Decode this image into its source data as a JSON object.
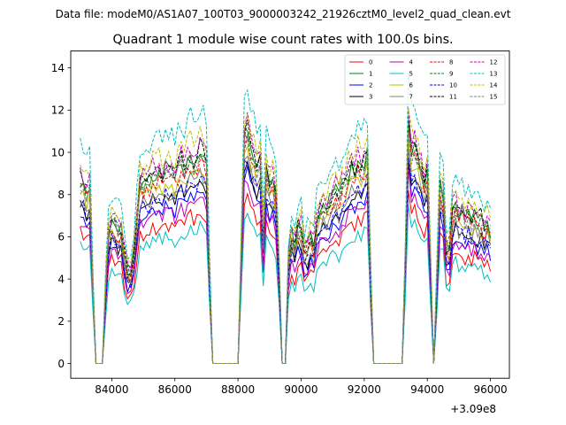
{
  "figure": {
    "suptitle": "Data file: modeM0/AS1A07_100T03_9000003242_21926cztM0_level2_quad_clean.evt",
    "offset_label": "+3.09e8"
  },
  "chart_data": {
    "type": "line",
    "title": "Quadrant 1 module wise count rates with 100.0s bins.",
    "xlabel": "",
    "ylabel": "",
    "xlim": [
      82700,
      96600
    ],
    "ylim": [
      -0.7,
      14.8
    ],
    "x_offset": 309000000,
    "xticks": [
      84000,
      86000,
      88000,
      90000,
      92000,
      94000,
      96000
    ],
    "xtick_labels": [
      "84000",
      "86000",
      "88000",
      "90000",
      "92000",
      "94000",
      "96000"
    ],
    "yticks": [
      0,
      2,
      4,
      6,
      8,
      10,
      12,
      14
    ],
    "ytick_labels": [
      "0",
      "2",
      "4",
      "6",
      "8",
      "10",
      "12",
      "14"
    ],
    "grid": false,
    "legend_position": "top-right",
    "legend_columns": 4,
    "x_start": 83000,
    "x_step": 100,
    "base_profile": [
      5.8,
      5.7,
      5.4,
      5.6,
      5.3,
      5.5,
      5.5,
      5.4,
      5.6,
      5.2,
      5.7,
      5.5,
      5.3,
      5.4,
      5.5,
      5.6,
      5.5,
      5.4,
      5.6,
      5.7,
      5.7,
      5.8,
      5.7,
      6.0,
      5.9,
      6.1,
      5.9,
      6.2,
      6.0,
      6.1,
      5.9,
      6.2,
      6.4,
      6.1,
      6.4,
      6.6,
      6.3,
      6.5,
      6.8,
      6.6,
      6.3,
      6.7,
      6.5,
      6.8,
      6.7,
      6.5,
      6.3,
      6.7,
      6.5,
      6.6,
      6.2,
      6.4,
      6.0,
      6.2,
      6.5,
      6.3,
      6.0,
      6.2,
      5.9,
      6.1,
      5.7,
      5.8,
      5.3,
      5.4,
      5.6,
      5.2,
      5.4,
      5.1,
      5.3,
      5.0,
      4.9,
      5.2,
      5.5,
      5.4,
      5.1,
      5.3,
      5.6,
      5.0,
      4.8,
      5.1,
      5.3,
      5.5,
      5.2,
      5.6,
      5.8,
      6.0,
      6.2,
      6.1,
      6.4,
      6.2,
      6.4,
      6.6,
      6.3,
      6.2,
      6.5,
      6.3,
      6.2,
      6.4,
      6.1,
      6.3,
      5.9,
      6.1,
      5.8,
      6.0,
      5.7,
      5.5,
      5.6,
      5.3,
      5.5,
      5.2,
      5.4,
      5.1,
      5.3,
      5.0,
      5.2,
      4.9,
      5.1,
      5.0,
      4.8,
      5.0,
      4.7,
      4.9,
      4.6,
      4.8,
      4.5,
      4.7,
      4.5,
      4.6,
      4.3,
      4.5,
      4.2
    ],
    "segments": [
      {
        "start": 0,
        "end": 4,
        "level": 1.0
      },
      {
        "start": 4,
        "end": 5,
        "level": 0.5
      },
      {
        "start": 5,
        "end": 8,
        "level": 0
      },
      {
        "start": 8,
        "end": 9,
        "level": 0.4
      },
      {
        "start": 9,
        "end": 14,
        "level": 0.8
      },
      {
        "start": 14,
        "end": 15,
        "level": 0.62
      },
      {
        "start": 15,
        "end": 17,
        "level": 0.54
      },
      {
        "start": 17,
        "end": 18,
        "level": 0.64
      },
      {
        "start": 18,
        "end": 19,
        "level": 0.82
      },
      {
        "start": 19,
        "end": 41,
        "level": 1.0
      },
      {
        "start": 41,
        "end": 42,
        "level": 0.4
      },
      {
        "start": 42,
        "end": 51,
        "level": 0
      },
      {
        "start": 51,
        "end": 52,
        "level": 0.55
      },
      {
        "start": 52,
        "end": 54,
        "level": 1.2
      },
      {
        "start": 54,
        "end": 58,
        "level": 1.05
      },
      {
        "start": 58,
        "end": 59,
        "level": 0.65
      },
      {
        "start": 59,
        "end": 63,
        "level": 1.0
      },
      {
        "start": 63,
        "end": 64,
        "level": 0.55
      },
      {
        "start": 64,
        "end": 66,
        "level": 0
      },
      {
        "start": 66,
        "end": 67,
        "level": 0.62
      },
      {
        "start": 67,
        "end": 68,
        "level": 0.8
      },
      {
        "start": 68,
        "end": 69,
        "level": 0.7
      },
      {
        "start": 69,
        "end": 71,
        "level": 0.88
      },
      {
        "start": 71,
        "end": 73,
        "level": 0.68
      },
      {
        "start": 73,
        "end": 75,
        "level": 0.74
      },
      {
        "start": 75,
        "end": 77,
        "level": 0.86
      },
      {
        "start": 77,
        "end": 92,
        "level": 1.0
      },
      {
        "start": 92,
        "end": 93,
        "level": 0.45
      },
      {
        "start": 93,
        "end": 103,
        "level": 0
      },
      {
        "start": 103,
        "end": 104,
        "level": 0.55
      },
      {
        "start": 104,
        "end": 105,
        "level": 1.35
      },
      {
        "start": 105,
        "end": 108,
        "level": 1.22
      },
      {
        "start": 108,
        "end": 111,
        "level": 1.12
      },
      {
        "start": 111,
        "end": 112,
        "level": 0.62
      },
      {
        "start": 112,
        "end": 113,
        "level": 0
      },
      {
        "start": 113,
        "end": 114,
        "level": 0.5
      },
      {
        "start": 114,
        "end": 116,
        "level": 1.1
      },
      {
        "start": 116,
        "end": 118,
        "level": 0.72
      }
    ],
    "series": [
      {
        "name": "0",
        "color": "#ff0000",
        "dashed": false,
        "scale": 1.07
      },
      {
        "name": "1",
        "color": "#008000",
        "dashed": false,
        "scale": 1.5
      },
      {
        "name": "2",
        "color": "#0000ff",
        "dashed": false,
        "scale": 1.22
      },
      {
        "name": "3",
        "color": "#000000",
        "dashed": false,
        "scale": 1.28
      },
      {
        "name": "4",
        "color": "#bf00bf",
        "dashed": false,
        "scale": 1.17
      },
      {
        "name": "5",
        "color": "#00bfbf",
        "dashed": false,
        "scale": 0.97
      },
      {
        "name": "6",
        "color": "#bfbf00",
        "dashed": false,
        "scale": 1.38
      },
      {
        "name": "7",
        "color": "#808080",
        "dashed": false,
        "scale": 1.33
      },
      {
        "name": "8",
        "color": "#ff0000",
        "dashed": true,
        "scale": 1.42
      },
      {
        "name": "9",
        "color": "#008000",
        "dashed": true,
        "scale": 1.48
      },
      {
        "name": "10",
        "color": "#0000ff",
        "dashed": true,
        "scale": 1.3
      },
      {
        "name": "11",
        "color": "#000000",
        "dashed": true,
        "scale": 1.52
      },
      {
        "name": "12",
        "color": "#bf00bf",
        "dashed": true,
        "scale": 1.56
      },
      {
        "name": "13",
        "color": "#00bfbf",
        "dashed": true,
        "scale": 1.78
      },
      {
        "name": "14",
        "color": "#bfbf00",
        "dashed": true,
        "scale": 1.62
      },
      {
        "name": "15",
        "color": "#808080",
        "dashed": true,
        "scale": 1.45
      }
    ]
  }
}
